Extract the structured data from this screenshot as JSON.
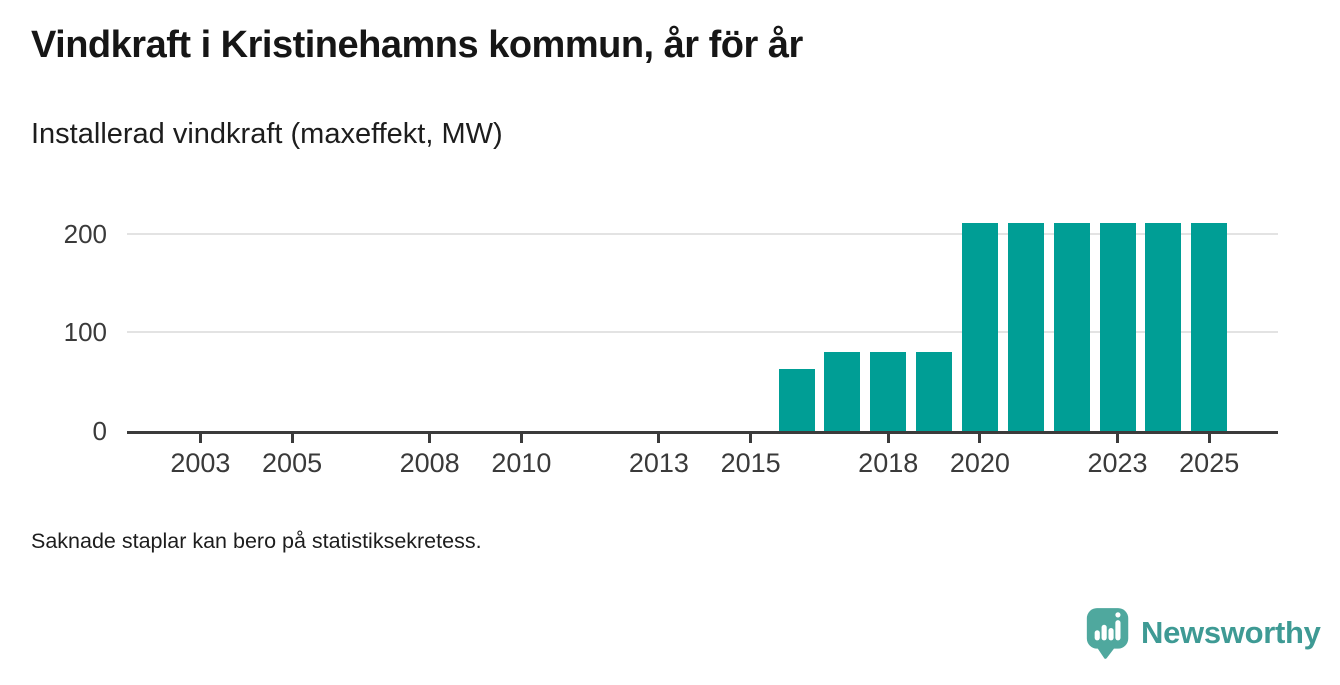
{
  "page": {
    "title": "Vindkraft i Kristinehamns kommun, år för år",
    "subtitle": "Installerad vindkraft (maxeffekt, MW)",
    "note": "Saknade staplar kan bero på statistiksekretess.",
    "brand": "Newsworthy"
  },
  "colors": {
    "bar": "#009e95",
    "axis": "#3b3b3b",
    "grid": "#e3e3e3",
    "logo_bubble": "#4fa89e",
    "logo_text": "#3e9a94"
  },
  "chart_data": {
    "type": "bar",
    "title": "Vindkraft i Kristinehamns kommun, år för år",
    "subtitle": "Installerad vindkraft (maxeffekt, MW)",
    "ylabel": "Installerad vindkraft (maxeffekt, MW)",
    "xlabel": "",
    "unit": "MW",
    "years": [
      2016,
      2017,
      2018,
      2019,
      2020,
      2021,
      2022,
      2023,
      2024,
      2025
    ],
    "values": [
      63,
      80,
      80,
      80,
      211,
      211,
      211,
      211,
      211,
      211
    ],
    "x_ticks": [
      2003,
      2005,
      2008,
      2010,
      2013,
      2015,
      2018,
      2020,
      2023,
      2025
    ],
    "y_ticks": [
      0,
      100,
      200
    ],
    "ylim": [
      0,
      224
    ],
    "x_domain": [
      2001.4,
      2026.5
    ],
    "grid": "horizontal",
    "legend": "none",
    "annotation": "Saknade staplar kan bero på statistiksekretess.",
    "bar_color": "#009e95"
  }
}
